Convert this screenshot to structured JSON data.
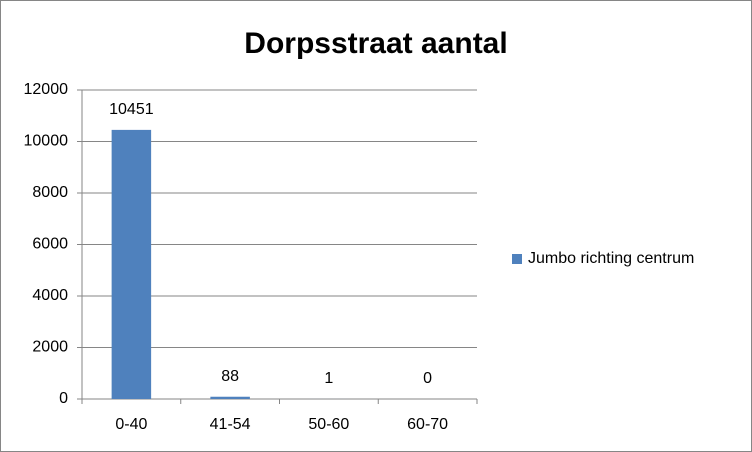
{
  "chart_data": {
    "type": "bar",
    "title": "Dorpsstraat aantal",
    "categories": [
      "0-40",
      "41-54",
      "50-60",
      "60-70"
    ],
    "series": [
      {
        "name": "Jumbo richting centrum",
        "color": "#4f81bd",
        "values": [
          10451,
          88,
          1,
          0
        ]
      }
    ],
    "ylim": [
      0,
      12000
    ],
    "yticks": [
      0,
      2000,
      4000,
      6000,
      8000,
      10000,
      12000
    ],
    "grid": true,
    "legend": "right",
    "data_labels": true
  }
}
